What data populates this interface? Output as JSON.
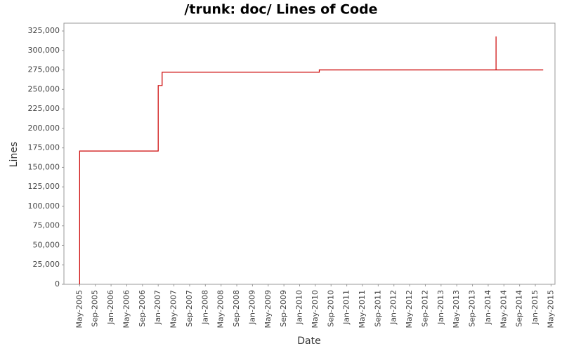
{
  "chart_data": {
    "type": "line",
    "step": "post",
    "title": "/trunk: doc/ Lines of Code",
    "x_label": "Date",
    "y_label": "Lines",
    "color": "#cc0000",
    "x": [
      "2005-05",
      "2005-05",
      "2007-01",
      "2007-02",
      "2010-06",
      "2014-03",
      "2014-03",
      "2015-03"
    ],
    "values": [
      0,
      171000,
      255000,
      272000,
      275000,
      318000,
      275000,
      275000
    ],
    "xlim": [
      "2005-01",
      "2015-06"
    ],
    "xticks": [
      {
        "value": "2005-05",
        "label": "May-2005"
      },
      {
        "value": "2005-09",
        "label": "Sep-2005"
      },
      {
        "value": "2006-01",
        "label": "Jan-2006"
      },
      {
        "value": "2006-05",
        "label": "May-2006"
      },
      {
        "value": "2006-09",
        "label": "Sep-2006"
      },
      {
        "value": "2007-01",
        "label": "Jan-2007"
      },
      {
        "value": "2007-05",
        "label": "May-2007"
      },
      {
        "value": "2007-09",
        "label": "Sep-2007"
      },
      {
        "value": "2008-01",
        "label": "Jan-2008"
      },
      {
        "value": "2008-05",
        "label": "May-2008"
      },
      {
        "value": "2008-09",
        "label": "Sep-2008"
      },
      {
        "value": "2009-01",
        "label": "Jan-2009"
      },
      {
        "value": "2009-05",
        "label": "May-2009"
      },
      {
        "value": "2009-09",
        "label": "Sep-2009"
      },
      {
        "value": "2010-01",
        "label": "Jan-2010"
      },
      {
        "value": "2010-05",
        "label": "May-2010"
      },
      {
        "value": "2010-09",
        "label": "Sep-2010"
      },
      {
        "value": "2011-01",
        "label": "Jan-2011"
      },
      {
        "value": "2011-05",
        "label": "May-2011"
      },
      {
        "value": "2011-09",
        "label": "Sep-2011"
      },
      {
        "value": "2012-01",
        "label": "Jan-2012"
      },
      {
        "value": "2012-05",
        "label": "May-2012"
      },
      {
        "value": "2012-09",
        "label": "Sep-2012"
      },
      {
        "value": "2013-01",
        "label": "Jan-2013"
      },
      {
        "value": "2013-05",
        "label": "May-2013"
      },
      {
        "value": "2013-09",
        "label": "Sep-2013"
      },
      {
        "value": "2014-01",
        "label": "Jan-2014"
      },
      {
        "value": "2014-05",
        "label": "May-2014"
      },
      {
        "value": "2014-09",
        "label": "Sep-2014"
      },
      {
        "value": "2015-01",
        "label": "Jan-2015"
      },
      {
        "value": "2015-05",
        "label": "May-2015"
      }
    ],
    "ylim": [
      0,
      335000
    ],
    "yticks": [
      0,
      {
        "value": 25000,
        "label": "25,000"
      },
      {
        "value": 50000,
        "label": "50,000"
      },
      {
        "value": 75000,
        "label": "75,000"
      },
      {
        "value": 100000,
        "label": "100,000"
      },
      {
        "value": 125000,
        "label": "125,000"
      },
      {
        "value": 150000,
        "label": "150,000"
      },
      {
        "value": 175000,
        "label": "175,000"
      },
      {
        "value": 200000,
        "label": "200,000"
      },
      {
        "value": 225000,
        "label": "225,000"
      },
      {
        "value": 250000,
        "label": "250,000"
      },
      {
        "value": 275000,
        "label": "275,000"
      },
      {
        "value": 300000,
        "label": "300,000"
      },
      {
        "value": 325000,
        "label": "325,000"
      }
    ]
  }
}
